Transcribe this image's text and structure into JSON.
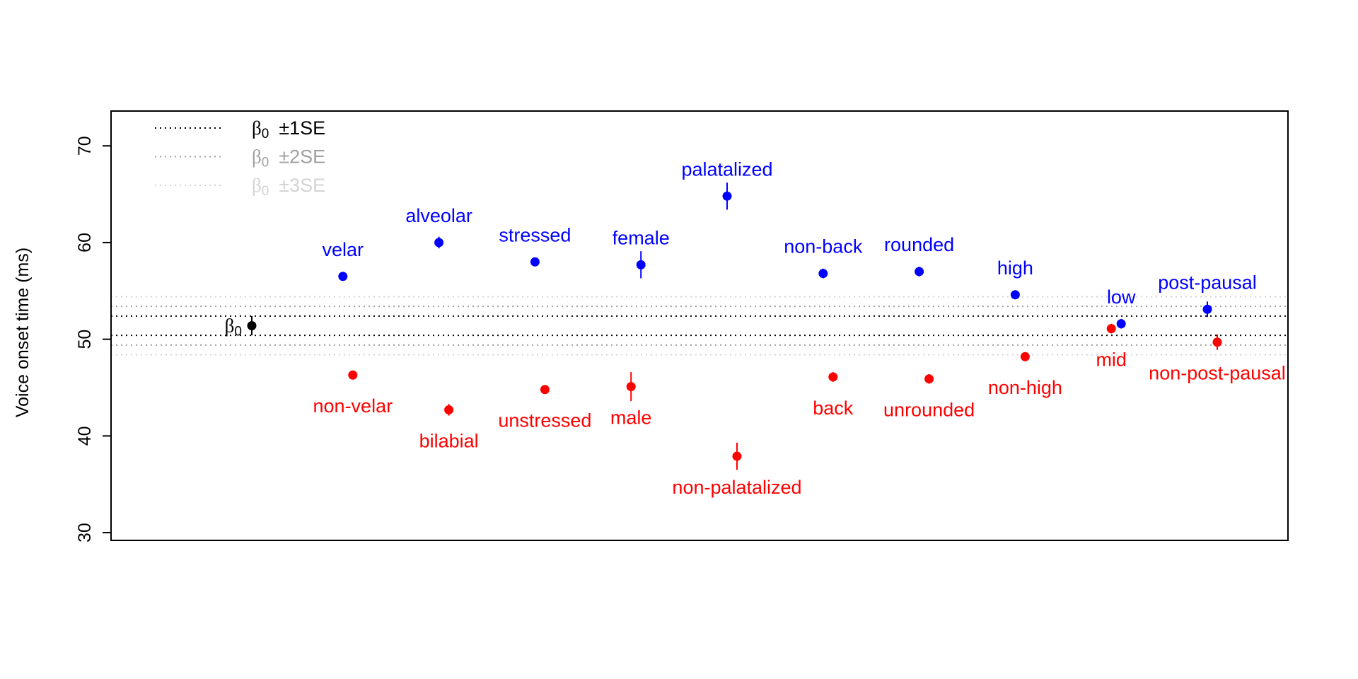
{
  "chart_data": {
    "type": "scatter",
    "title": "",
    "xlabel": "",
    "ylabel": "Voice onset time (ms)",
    "ylim": [
      29.2,
      73.6
    ],
    "yticks": [
      30,
      40,
      50,
      60,
      70
    ],
    "grid": false,
    "legend_placement": "top-left",
    "colors": {
      "positive": "#0000FF",
      "negative": "#FF0000",
      "intercept": "#000000",
      "se1": "#000000",
      "se2": "#A0A0A0",
      "se3": "#D3D3D3"
    },
    "intercept": {
      "label": "β",
      "label_sub": "0",
      "value": 51.4,
      "se": 1.0
    },
    "legend": [
      {
        "symbol": "β",
        "sub": "0",
        "text": "±1SE",
        "multiplier": 1
      },
      {
        "symbol": "β",
        "sub": "0",
        "text": "±2SE",
        "multiplier": 2
      },
      {
        "symbol": "β",
        "sub": "0",
        "text": "±3SE",
        "multiplier": 3
      }
    ],
    "pairs": [
      {
        "blue": {
          "label": "velar",
          "value": 56.5,
          "err": 0.4
        },
        "red": {
          "label": "non-velar",
          "value": 46.3,
          "err": 0.4
        }
      },
      {
        "blue": {
          "label": "alveolar",
          "value": 60.0,
          "err": 0.6
        },
        "red": {
          "label": "bilabial",
          "value": 42.7,
          "err": 0.6
        }
      },
      {
        "blue": {
          "label": "stressed",
          "value": 58.0,
          "err": 0.4
        },
        "red": {
          "label": "unstressed",
          "value": 44.8,
          "err": 0.4
        }
      },
      {
        "blue": {
          "label": "female",
          "value": 57.7,
          "err": 1.4
        },
        "red": {
          "label": "male",
          "value": 45.1,
          "err": 1.5
        }
      },
      {
        "blue": {
          "label": "palatalized",
          "value": 64.8,
          "err": 1.4
        },
        "red": {
          "label": "non-palatalized",
          "value": 37.9,
          "err": 1.4
        }
      },
      {
        "blue": {
          "label": "non-back",
          "value": 56.8,
          "err": 0.5
        },
        "red": {
          "label": "back",
          "value": 46.1,
          "err": 0.5
        }
      },
      {
        "blue": {
          "label": "rounded",
          "value": 57.0,
          "err": 0.5
        },
        "red": {
          "label": "unrounded",
          "value": 45.9,
          "err": 0.5
        }
      },
      {
        "blue": {
          "label": "high",
          "value": 54.6,
          "err": 0.4
        },
        "red": {
          "label": "non-high",
          "value": 48.2,
          "err": 0.4
        }
      },
      {
        "blue": {
          "label": "low",
          "value": 51.6,
          "err": 0.5
        },
        "red": {
          "label": "mid",
          "value": 51.1,
          "err": 0.5
        }
      },
      {
        "blue": {
          "label": "post-pausal",
          "value": 53.1,
          "err": 0.8
        },
        "red": {
          "label": "non-post-pausal",
          "value": 49.7,
          "err": 0.8
        }
      }
    ]
  }
}
